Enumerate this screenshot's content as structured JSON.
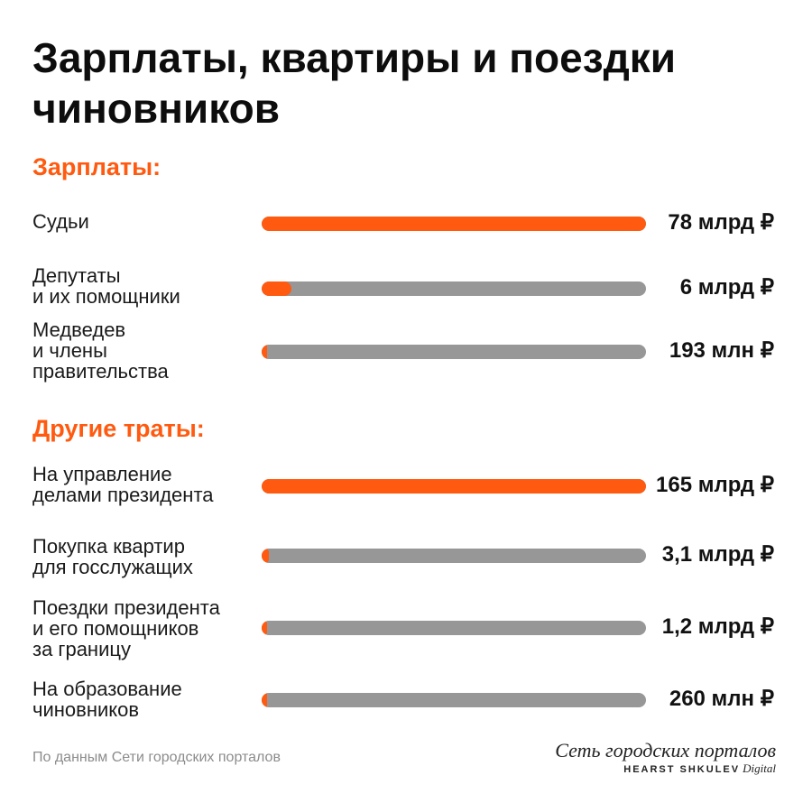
{
  "title": "Зарплаты, квартиры и поездки чиновников",
  "chart_data": {
    "type": "bar",
    "sections": [
      {
        "heading": "Зарплаты:",
        "rows": [
          {
            "label": "Судьи",
            "value_text": "78 млрд ₽",
            "value": 78000,
            "fraction": 1.0
          },
          {
            "label": "Депутаты\nи их помощники",
            "value_text": "6 млрд  ₽",
            "value": 6000,
            "fraction": 0.077
          },
          {
            "label": "Медведев\nи члены\nправительства",
            "value_text": "193 млн ₽",
            "value": 193,
            "fraction": 0.0025
          }
        ]
      },
      {
        "heading": "Другие траты:",
        "rows": [
          {
            "label": "На управление\nделами президента",
            "value_text": "165 млрд ₽",
            "value": 165000,
            "fraction": 1.0
          },
          {
            "label": "Покупка квартир\nдля госслужащих",
            "value_text": "3,1 млрд ₽",
            "value": 3100,
            "fraction": 0.019
          },
          {
            "label": "Поездки президента\nи его помощников\nза границу",
            "value_text": "1,2 млрд ₽",
            "value": 1200,
            "fraction": 0.0073
          },
          {
            "label": "На образование\nчиновников",
            "value_text": "260 млн ₽",
            "value": 260,
            "fraction": 0.0016
          }
        ]
      }
    ],
    "units": "млн ₽",
    "colors": {
      "fill": "#ff5a0f",
      "track": "#979797"
    }
  },
  "source": "По данным Сети городских порталов",
  "logo": {
    "name": "Сеть городских порталов",
    "brand": "HEARST SHKULEV",
    "brand_suffix": "Digital"
  }
}
